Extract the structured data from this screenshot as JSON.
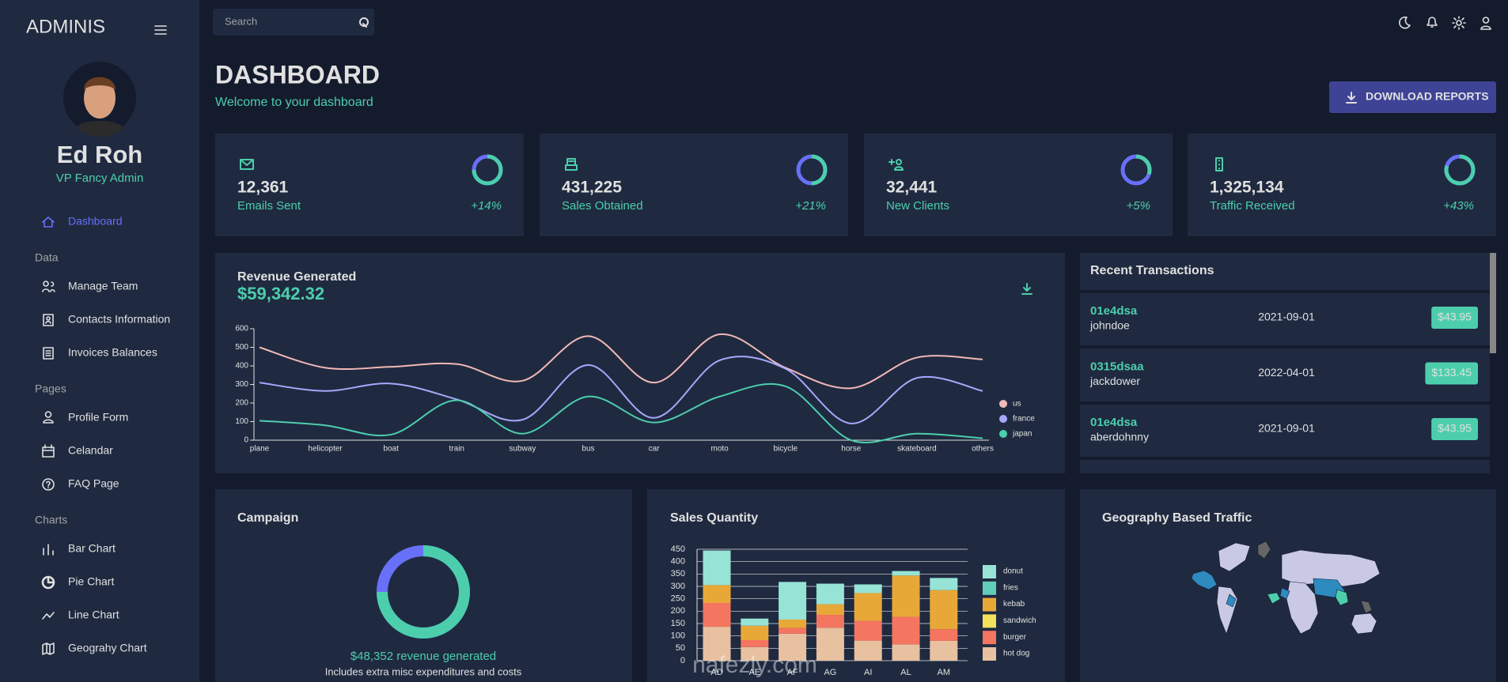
{
  "sidebar": {
    "brand": "ADMINIS",
    "profile": {
      "name": "Ed Roh",
      "role": "VP Fancy Admin"
    },
    "home": "Dashboard",
    "groups": [
      {
        "title": "Data",
        "items": [
          "Manage Team",
          "Contacts Information",
          "Invoices Balances"
        ]
      },
      {
        "title": "Pages",
        "items": [
          "Profile Form",
          "Celandar",
          "FAQ Page"
        ]
      },
      {
        "title": "Charts",
        "items": [
          "Bar Chart",
          "Pie Chart",
          "Line Chart",
          "Geograhy Chart"
        ]
      }
    ]
  },
  "topbar": {
    "search": "Search"
  },
  "header": {
    "title": "DASHBOARD",
    "subtitle": "Welcome to your dashboard",
    "button": "DOWNLOAD REPORTS"
  },
  "stats": [
    {
      "value": "12,361",
      "label": "Emails Sent",
      "increase": "+14%",
      "progress": 0.75
    },
    {
      "value": "431,225",
      "label": "Sales Obtained",
      "increase": "+21%",
      "progress": 0.5
    },
    {
      "value": "32,441",
      "label": "New Clients",
      "increase": "+5%",
      "progress": 0.3
    },
    {
      "value": "1,325,134",
      "label": "Traffic Received",
      "increase": "+43%",
      "progress": 0.8
    }
  ],
  "revenue": {
    "title": "Revenue Generated",
    "amount": "$59,342.32",
    "chart": {
      "type": "line",
      "categories": [
        "plane",
        "helicopter",
        "boat",
        "train",
        "subway",
        "bus",
        "car",
        "moto",
        "bicycle",
        "horse",
        "skateboard",
        "others"
      ],
      "series": [
        {
          "name": "us",
          "color": "#f1b9b7",
          "values": [
            500,
            390,
            395,
            410,
            320,
            560,
            310,
            570,
            390,
            280,
            445,
            435
          ]
        },
        {
          "name": "france",
          "color": "#a4a9fc",
          "values": [
            310,
            265,
            305,
            220,
            110,
            405,
            120,
            430,
            385,
            90,
            335,
            265
          ]
        },
        {
          "name": "japan",
          "color": "#4cceac",
          "values": [
            105,
            80,
            30,
            215,
            35,
            235,
            95,
            235,
            290,
            0,
            35,
            10
          ]
        }
      ],
      "ylim": [
        0,
        600
      ],
      "yticks": [
        0,
        100,
        200,
        300,
        400,
        500,
        600
      ]
    }
  },
  "transactions": {
    "title": "Recent Transactions",
    "rows": [
      {
        "txId": "01e4dsa",
        "user": "johndoe",
        "date": "2021-09-01",
        "cost": "$43.95"
      },
      {
        "txId": "0315dsaa",
        "user": "jackdower",
        "date": "2022-04-01",
        "cost": "$133.45"
      },
      {
        "txId": "01e4dsa",
        "user": "aberdohnny",
        "date": "2021-09-01",
        "cost": "$43.95"
      }
    ]
  },
  "campaign": {
    "title": "Campaign",
    "progress": 0.75,
    "revenue": "$48,352 revenue generated",
    "note": "Includes extra misc expenditures and costs"
  },
  "sales": {
    "title": "Sales Quantity",
    "chart": {
      "type": "bar",
      "stacked": true,
      "grid": true,
      "categories": [
        "AD",
        "AE",
        "AF",
        "AG",
        "AI",
        "AL",
        "AM"
      ],
      "series": [
        {
          "name": "hot dog",
          "color": "#e8c1a0",
          "values": [
            137,
            55,
            109,
            133,
            81,
            66,
            80
          ]
        },
        {
          "name": "burger",
          "color": "#f47560",
          "values": [
            96,
            28,
            23,
            52,
            80,
            111,
            47
          ]
        },
        {
          "name": "sandwich",
          "color": "#f1e15b",
          "values": [
            null,
            null,
            null,
            null,
            null,
            null,
            null
          ]
        },
        {
          "name": "kebab",
          "color": "#e8a838",
          "values": [
            72,
            58,
            34,
            43,
            112,
            167,
            158
          ]
        },
        {
          "name": "fries",
          "color": "#61cdbb",
          "values": [
            null,
            null,
            null,
            null,
            null,
            null,
            null
          ]
        },
        {
          "name": "donut",
          "color": "#97e3d5",
          "values": [
            140,
            29,
            152,
            83,
            35,
            18,
            49
          ]
        }
      ],
      "ylim": [
        0,
        450
      ],
      "yticks": [
        0,
        50,
        100,
        150,
        200,
        250,
        300,
        350,
        400,
        450
      ]
    }
  },
  "geography": {
    "title": "Geography Based Traffic"
  },
  "watermark": "nafezly.com"
}
